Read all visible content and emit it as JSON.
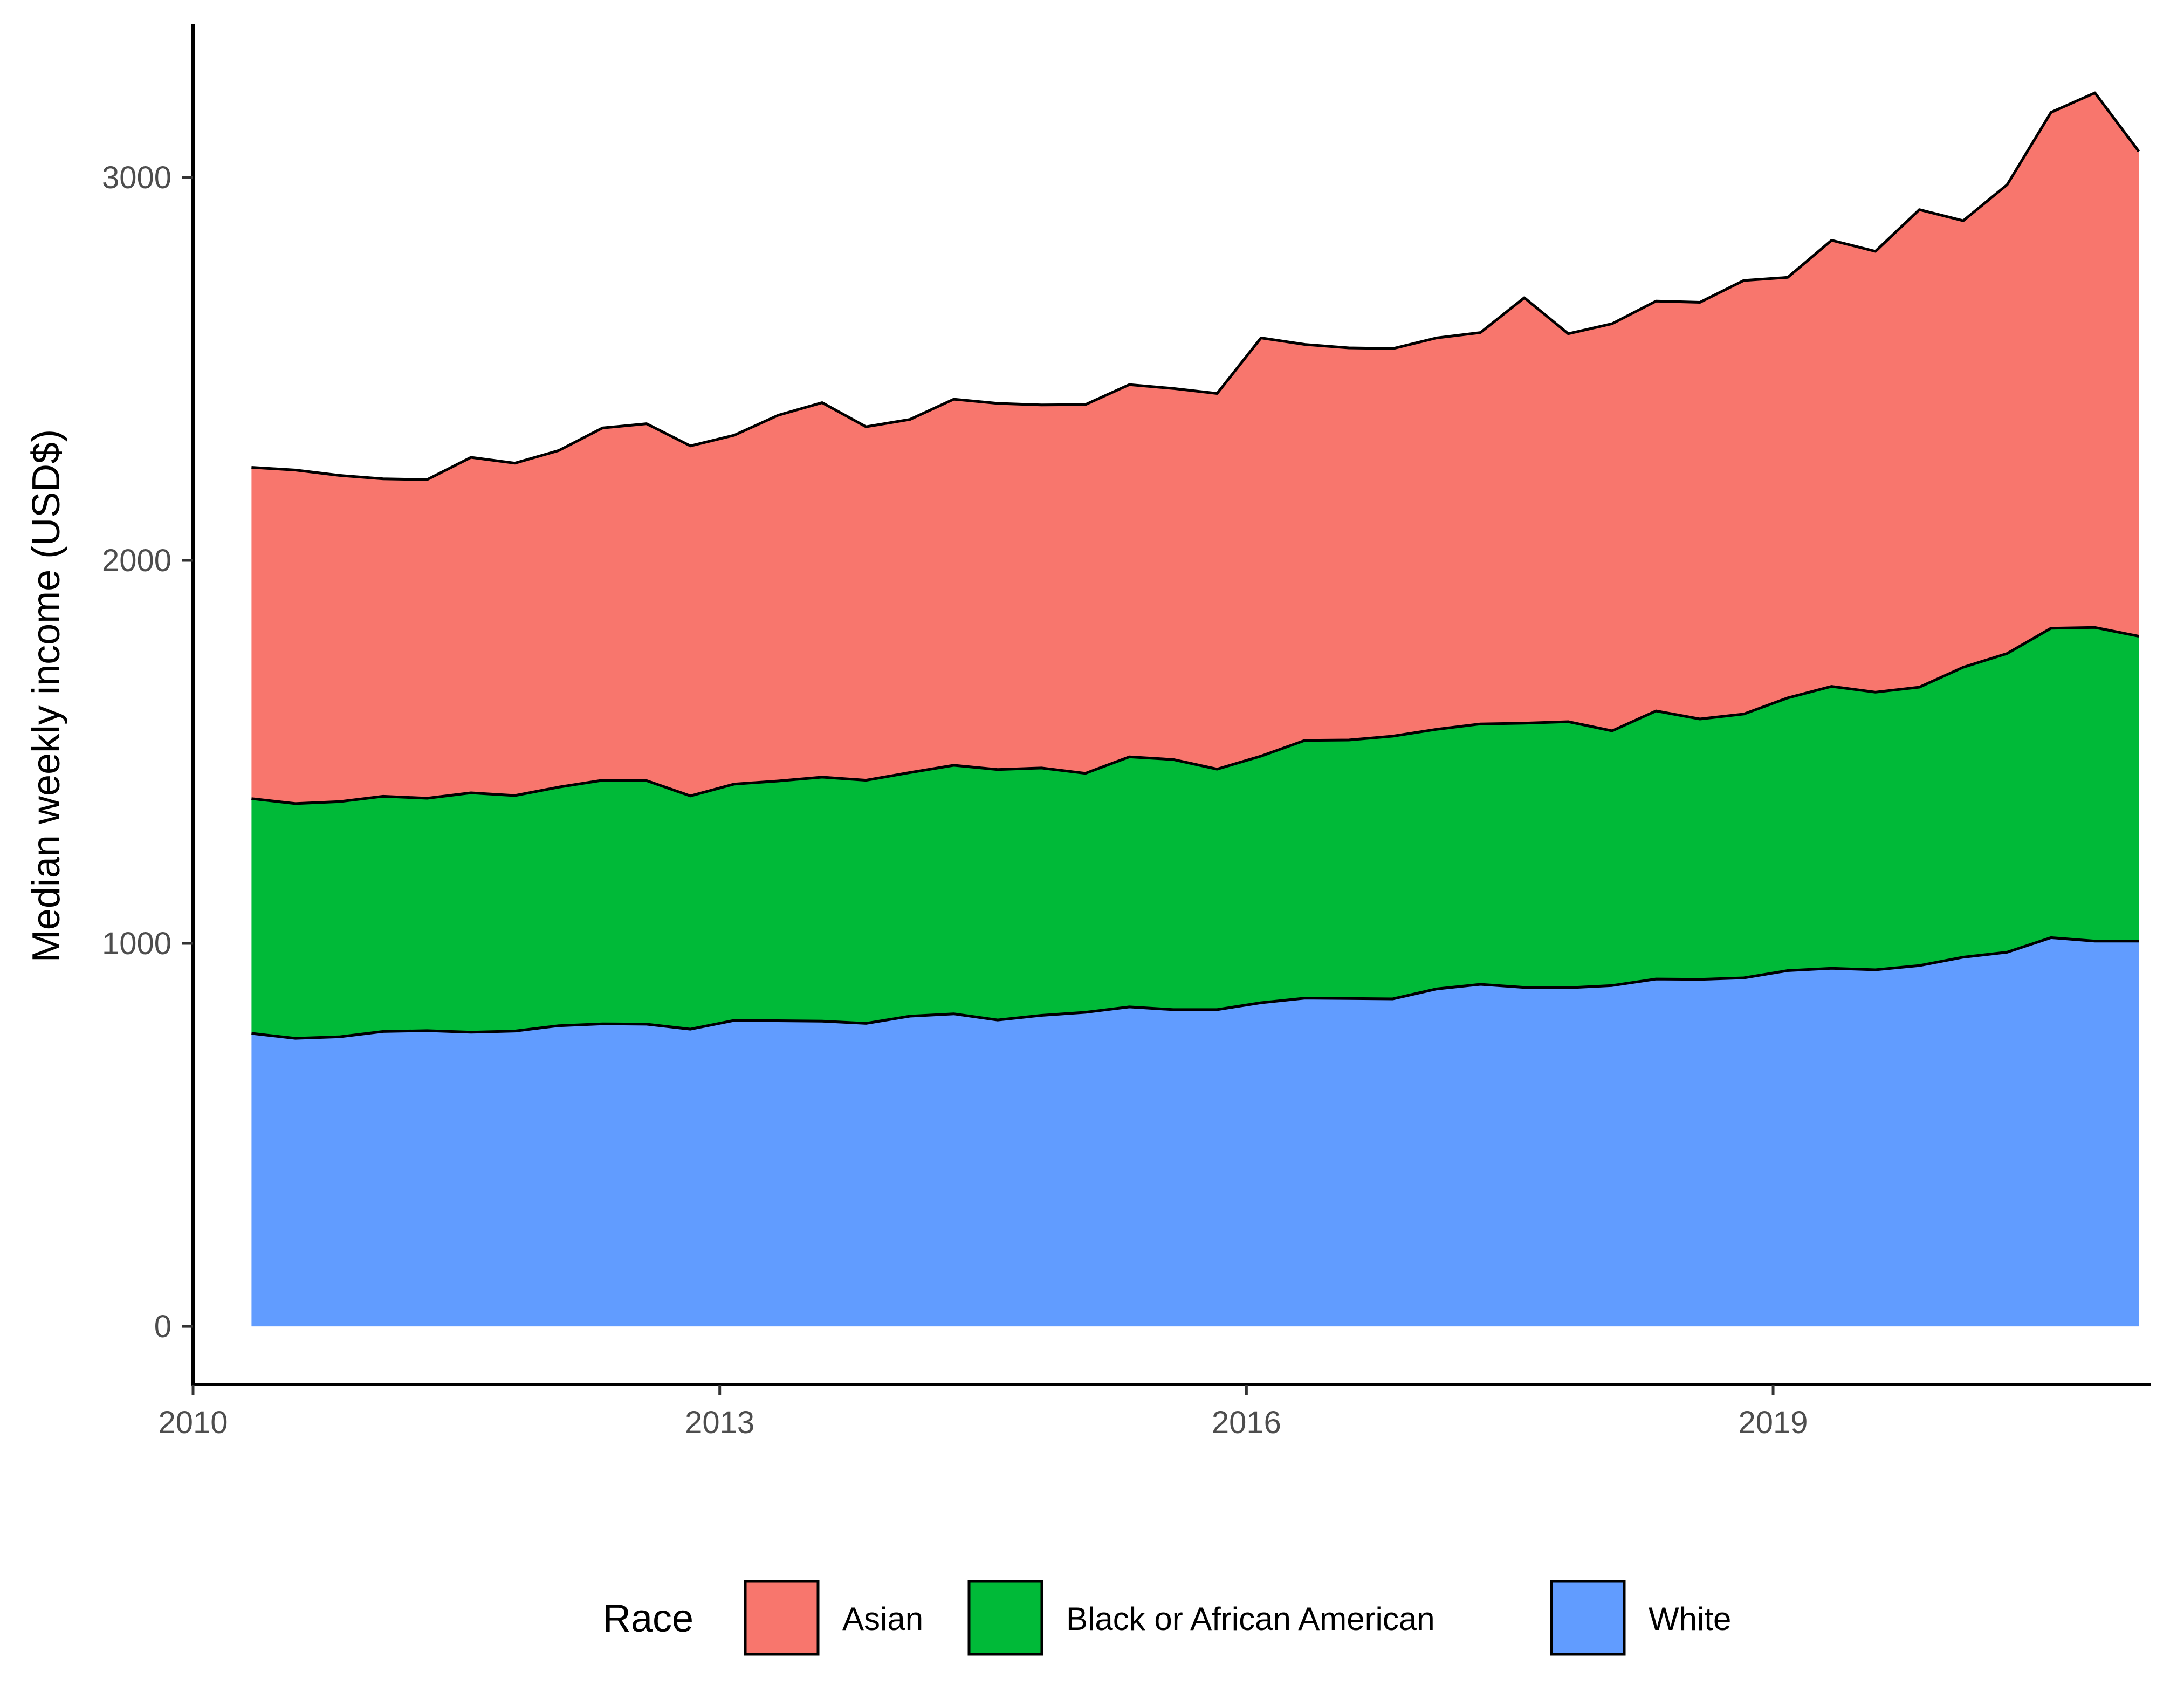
{
  "chart_data": {
    "type": "area",
    "stacked": true,
    "x": [
      2010.333,
      2010.583,
      2010.833,
      2011.083,
      2011.333,
      2011.583,
      2011.833,
      2012.083,
      2012.333,
      2012.583,
      2012.833,
      2013.083,
      2013.333,
      2013.583,
      2013.833,
      2014.083,
      2014.333,
      2014.583,
      2014.833,
      2015.083,
      2015.333,
      2015.583,
      2015.833,
      2016.083,
      2016.333,
      2016.583,
      2016.833,
      2017.083,
      2017.333,
      2017.583,
      2017.833,
      2018.083,
      2018.333,
      2018.583,
      2018.833,
      2019.083,
      2019.333,
      2019.583,
      2019.833,
      2020.083,
      2020.333,
      2020.583,
      2020.833,
      2021.083
    ],
    "series": [
      {
        "name": "Asian",
        "color": "#F8766D",
        "values": [
          865,
          871,
          852,
          829,
          832,
          876,
          868,
          879,
          920,
          932,
          914,
          911,
          955,
          978,
          923,
          922,
          956,
          956,
          948,
          963,
          972,
          969,
          981,
          1092,
          1034,
          1024,
          1012,
          1022,
          1022,
          1111,
          1013,
          1063,
          1070,
          1088,
          1132,
          1098,
          1165,
          1151,
          1247,
          1166,
          1224,
          1347,
          1396,
          1266
        ]
      },
      {
        "name": "Black or African American",
        "color": "#00BA38",
        "values": [
          613,
          613,
          614,
          614,
          607,
          625,
          615,
          623,
          636,
          636,
          609,
          617,
          626,
          637,
          635,
          636,
          649,
          654,
          646,
          624,
          653,
          653,
          628,
          644,
          673,
          675,
          686,
          678,
          680,
          690,
          695,
          665,
          700,
          680,
          689,
          712,
          736,
          725,
          727,
          757,
          780,
          808,
          819,
          796
        ]
      },
      {
        "name": "White",
        "color": "#619CFF",
        "values": [
          765,
          752,
          756,
          770,
          772,
          768,
          771,
          785,
          790,
          789,
          776,
          799,
          798,
          797,
          791,
          810,
          816,
          800,
          812,
          820,
          834,
          827,
          827,
          845,
          857,
          856,
          855,
          881,
          893,
          885,
          884,
          890,
          907,
          906,
          910,
          929,
          935,
          931,
          942,
          964,
          977,
          1015,
          1006,
          1006
        ]
      }
    ],
    "ylabel": "Median weekly income (USD$)",
    "xlabel": "",
    "xticks": [
      2010,
      2013,
      2016,
      2019
    ],
    "xtick_labels": [
      "2010",
      "2013",
      "2016",
      "2019"
    ],
    "yticks": [
      0,
      1000,
      2000,
      3000
    ],
    "ytick_labels": [
      "0",
      "1000",
      "2000",
      "3000"
    ],
    "xlim": [
      2010,
      2021.15
    ],
    "ylim": [
      -152,
      3400
    ],
    "grid": false,
    "legend": {
      "title": "Race",
      "position": "bottom",
      "entries": [
        "Asian",
        "Black or African American",
        "White"
      ]
    }
  }
}
